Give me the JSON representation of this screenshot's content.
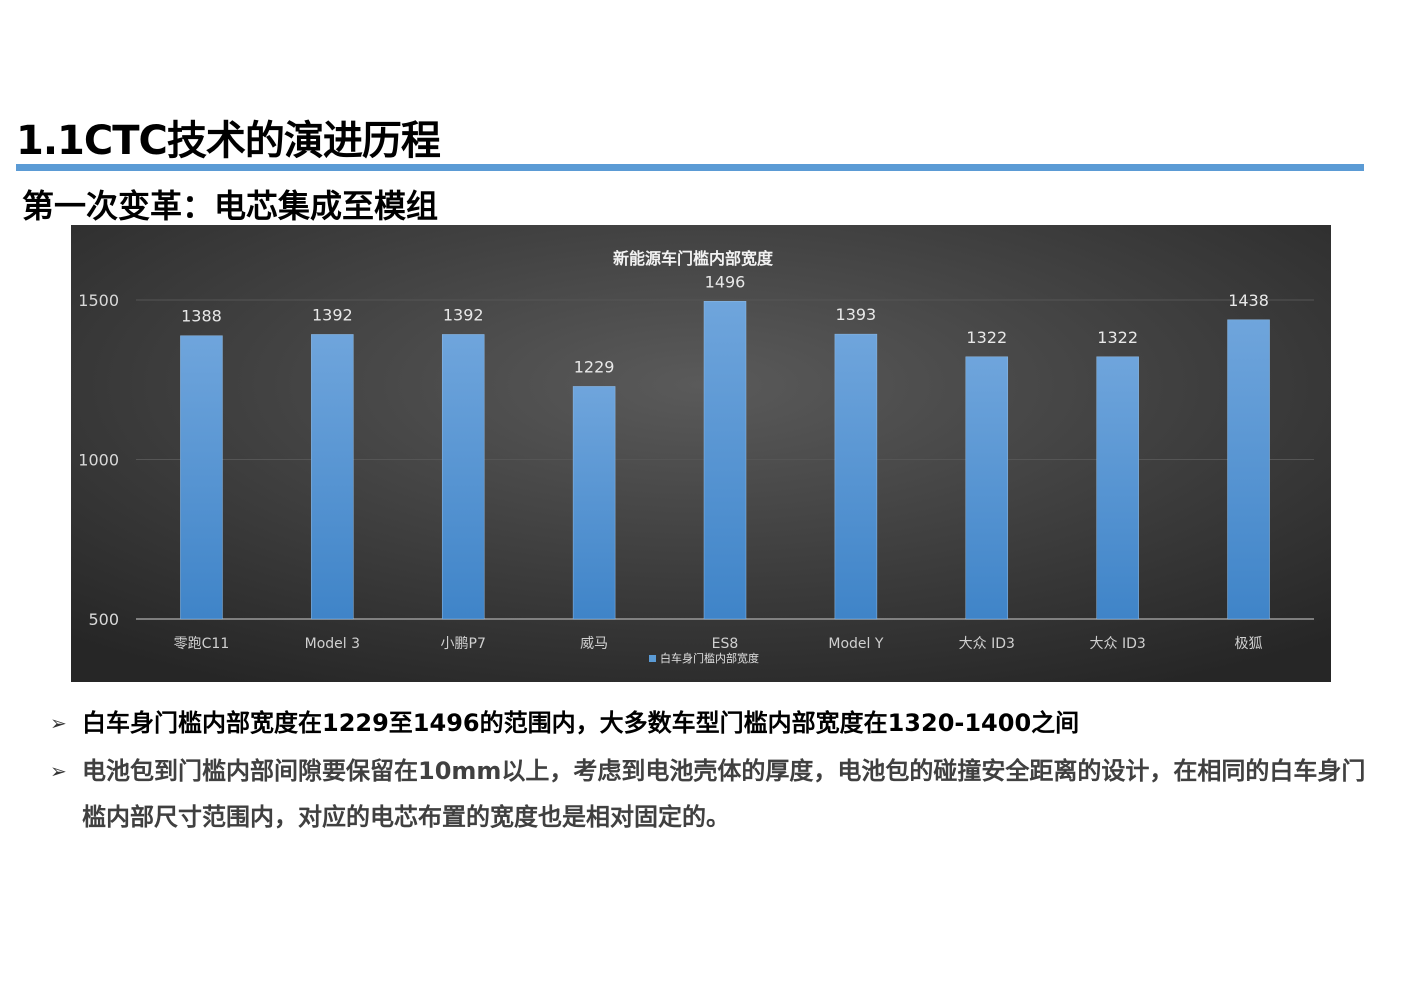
{
  "header": {
    "title": "1.1CTC技术的演进历程",
    "subtitle": "第一次变革：电芯集成至模组"
  },
  "chart_data": {
    "type": "bar",
    "title": "新能源车门槛内部宽度",
    "categories": [
      "零跑C11",
      "Model 3",
      "小鹏P7",
      "威马",
      "ES8",
      "Model Y",
      "大众 ID3",
      "大众 ID3",
      "极狐"
    ],
    "series": [
      {
        "name": "白车身门槛内部宽度",
        "values": [
          1388,
          1392,
          1392,
          1229,
          1496,
          1393,
          1322,
          1322,
          1438
        ]
      }
    ],
    "ylim": [
      500,
      1500
    ],
    "yticks": [
      500,
      1000,
      1500
    ],
    "xlabel": "",
    "ylabel": "",
    "grid": true,
    "legend": "bottom",
    "colors": {
      "bar_top": "#6fa5dc",
      "bar_bottom": "#3f84c8",
      "background_center": "#5a5a5a",
      "background_edge": "#262626",
      "legend_swatch": "#5b9bd5"
    }
  },
  "bullets": [
    {
      "marker": "➢",
      "text": "白车身门槛内部宽度在1229至1496的范围内，大多数车型门槛内部宽度在1320-1400之间"
    },
    {
      "marker": "➢",
      "text": "电池包到门槛内部间隙要保留在10mm以上，考虑到电池壳体的厚度，电池包的碰撞安全距离的设计，在相同的白车身门槛内部尺寸范围内，对应的电芯布置的宽度也是相对固定的。"
    }
  ],
  "colors": {
    "accent_rule": "#5b9bd5"
  }
}
